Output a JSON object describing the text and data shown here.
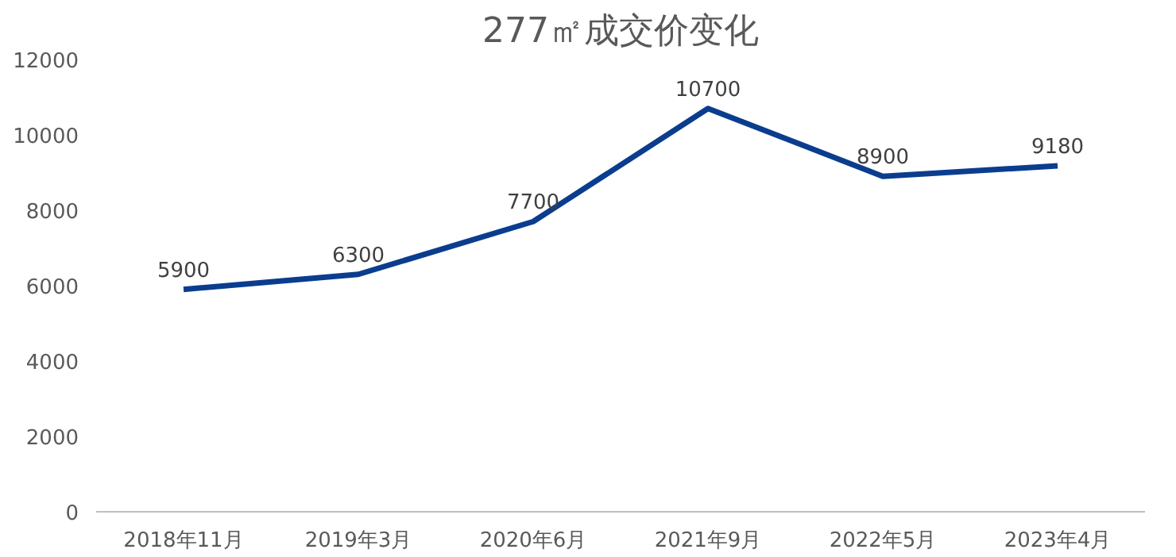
{
  "chart_data": {
    "type": "line",
    "title": "277㎡成交价变化",
    "categories": [
      "2018年11月",
      "2019年3月",
      "2020年6月",
      "2021年9月",
      "2022年5月",
      "2023年4月"
    ],
    "series": [
      {
        "color": "#0b3d8f",
        "values": [
          5900,
          6300,
          7700,
          10700,
          8900,
          9180
        ]
      }
    ],
    "ylim": [
      0,
      12000
    ],
    "yticks": [
      0,
      2000,
      4000,
      6000,
      8000,
      10000,
      12000
    ],
    "data_labels": true,
    "grid": false
  }
}
